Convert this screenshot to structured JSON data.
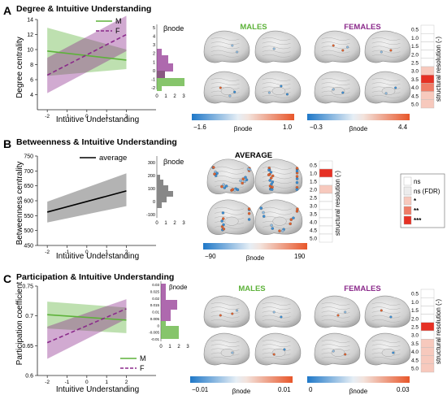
{
  "panels": {
    "A": {
      "letter": "A",
      "title": "Degree & Intuitive Understanding",
      "ylabel": "Degree centrality",
      "xlabel": "Intuitive Understanding",
      "legend_m": "M",
      "legend_f": "F",
      "hist_label": "βnode",
      "males_label": "MALES",
      "females_label": "FEMALES",
      "males_cbar_min": "−1.6",
      "males_cbar_max": "1.0",
      "females_cbar_min": "−0.3",
      "females_cbar_max": "4.4",
      "cbar_label": "βnode",
      "res_label": "structural resolution (-)"
    },
    "B": {
      "letter": "B",
      "title": "Betweenness & Intuitive Understanding",
      "ylabel": "Betweenness centrality",
      "xlabel": "Intuitive Understanding",
      "legend_avg": "average",
      "hist_label": "βnode",
      "avg_label": "AVERAGE",
      "cbar_min": "−90",
      "cbar_max": "190",
      "cbar_label": "βnode",
      "res_label": "structural resolution (-)"
    },
    "C": {
      "letter": "C",
      "title": "Participation & Intuitive Understanding",
      "ylabel": "Participation coefficient",
      "xlabel": "Intuitive Understanding",
      "legend_m": "M",
      "legend_f": "F",
      "hist_label": "βnode",
      "males_label": "MALES",
      "females_label": "FEMALES",
      "males_cbar_min": "−0.01",
      "males_cbar_max": "0.01",
      "females_cbar_min": "0",
      "females_cbar_max": "0.03",
      "cbar_label": "βnode",
      "res_label": "structural resolution (-)"
    }
  },
  "sig_legend": [
    "ns",
    "ns (FDR)",
    "*",
    "**",
    "***"
  ],
  "colors": {
    "males": "#5db23a",
    "females": "#8b2a8b",
    "average": "#000000",
    "cbar_low": "#1f78c8",
    "cbar_high": "#e8562a"
  },
  "chart_data": [
    {
      "type": "line",
      "panel": "A",
      "xlim": [
        -2.5,
        3.5
      ],
      "ylim": [
        2,
        14
      ],
      "xticks": [
        "-2",
        "-1",
        "0",
        "1",
        "2"
      ],
      "yticks": [
        "4",
        "6",
        "8",
        "10",
        "12",
        "14"
      ],
      "series": [
        {
          "name": "M",
          "x": [
            -2,
            2
          ],
          "y": [
            9.8,
            8.6
          ],
          "ci_low": [
            6.5,
            7.4
          ],
          "ci_high": [
            12.9,
            10.0
          ]
        },
        {
          "name": "F",
          "x": [
            -2,
            2
          ],
          "y": [
            6.6,
            12.0
          ],
          "ci_low": [
            4.2,
            9.8
          ],
          "ci_high": [
            8.9,
            14.5
          ]
        }
      ],
      "hist_ticks": [
        "-2",
        "-1",
        "0",
        "1",
        "2",
        "3",
        "4",
        "5"
      ]
    },
    {
      "type": "line",
      "panel": "B",
      "xlim": [
        -2.5,
        3.5
      ],
      "ylim": [
        450,
        750
      ],
      "xticks": [
        "-2",
        "-1",
        "0",
        "1",
        "2"
      ],
      "yticks": [
        "450",
        "500",
        "550",
        "600",
        "650",
        "700",
        "750"
      ],
      "series": [
        {
          "name": "average",
          "x": [
            -2,
            2
          ],
          "y": [
            562,
            633
          ],
          "ci_low": [
            527,
            582
          ],
          "ci_high": [
            597,
            692
          ]
        }
      ],
      "hist_ticks": [
        "-100",
        "0",
        "100",
        "200",
        "300"
      ]
    },
    {
      "type": "line",
      "panel": "C",
      "xlim": [
        -2.5,
        3.5
      ],
      "ylim": [
        0.6,
        0.75
      ],
      "xticks": [
        "-2",
        "-1",
        "0",
        "1",
        "2"
      ],
      "yticks": [
        "0.6",
        "0.65",
        "0.7",
        "0.75"
      ],
      "series": [
        {
          "name": "M",
          "x": [
            -2,
            2
          ],
          "y": [
            0.702,
            0.693
          ],
          "ci_low": [
            0.679,
            0.671
          ],
          "ci_high": [
            0.724,
            0.714
          ]
        },
        {
          "name": "F",
          "x": [
            -2,
            2
          ],
          "y": [
            0.655,
            0.712
          ],
          "ci_low": [
            0.628,
            0.695
          ],
          "ci_high": [
            0.682,
            0.728
          ]
        }
      ],
      "hist_ticks": [
        "-0.01",
        "-0.005",
        "0",
        "0.005",
        "0.01",
        "0.015",
        "0.02",
        "0.025",
        "0.03"
      ]
    }
  ],
  "resolution_ticks": [
    "0.5",
    "1.0",
    "1.5",
    "2.0",
    "2.5",
    "3.0",
    "3.5",
    "4.0",
    "4.5",
    "5.0"
  ],
  "x_axis_ticks_hist": [
    "0",
    "1",
    "2",
    "3"
  ]
}
